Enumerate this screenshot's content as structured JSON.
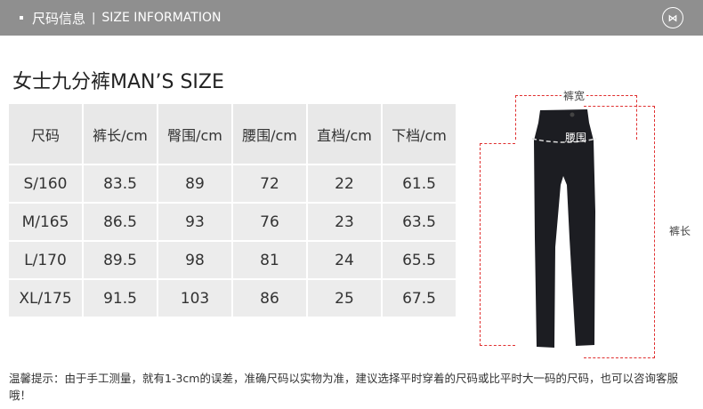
{
  "header": {
    "title_cn": "尺码信息",
    "separator": "|",
    "title_en": "SIZE INFORMATION",
    "logo_icon": "brand-logo"
  },
  "page_title": "女士九分裤MAN’S SIZE",
  "table": {
    "columns": [
      "尺码",
      "裤长/cm",
      "臀围/cm",
      "腰围/cm",
      "直档/cm",
      "下档/cm"
    ],
    "rows": [
      [
        "S/160",
        "83.5",
        "89",
        "72",
        "22",
        "61.5"
      ],
      [
        "M/165",
        "86.5",
        "93",
        "76",
        "23",
        "63.5"
      ],
      [
        "L/170",
        "89.5",
        "98",
        "81",
        "24",
        "65.5"
      ],
      [
        "XL/175",
        "91.5",
        "103",
        "86",
        "25",
        "67.5"
      ]
    ]
  },
  "diagram": {
    "width_label": "裤宽",
    "waist_label": "腰围",
    "length_label": "裤长",
    "line_color": "#e03030"
  },
  "note": "温馨提示：由于手工测量，就有1-3cm的误差，准确尺码以实物为准，建议选择平时穿着的尺码或比平时大一码的尺码，也可以咨询客服哦！"
}
